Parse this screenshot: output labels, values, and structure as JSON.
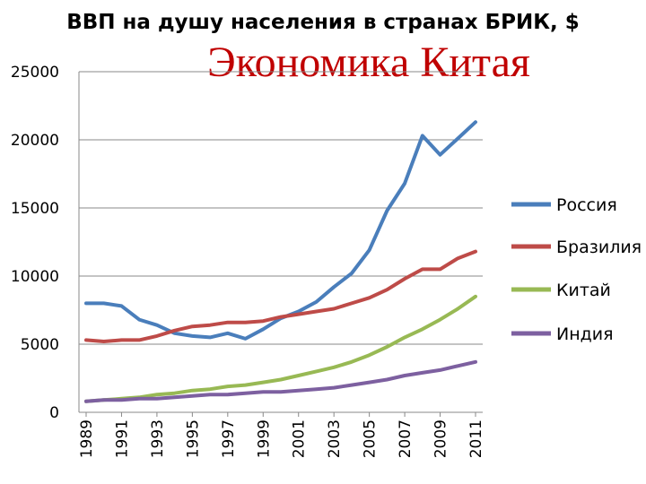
{
  "overlay_title": "Экономика Китая",
  "chart_data": {
    "type": "line",
    "title": "ВВП на душу населения в странах БРИК, $",
    "xlabel": "",
    "ylabel": "",
    "x": [
      1989,
      1990,
      1991,
      1992,
      1993,
      1994,
      1995,
      1996,
      1997,
      1998,
      1999,
      2000,
      2001,
      2002,
      2003,
      2004,
      2005,
      2006,
      2007,
      2008,
      2009,
      2010,
      2011
    ],
    "x_tick_labels": [
      "1989",
      "1991",
      "1993",
      "1995",
      "1997",
      "1999",
      "2001",
      "2003",
      "2005",
      "2007",
      "2009",
      "2011"
    ],
    "y_ticks": [
      "0",
      "5000",
      "10000",
      "15000",
      "20000",
      "25000"
    ],
    "ylim": [
      0,
      25000
    ],
    "grid": true,
    "legend_position": "right",
    "series": [
      {
        "name": "Россия",
        "color": "#4a7ebb",
        "values": [
          8000,
          8000,
          7800,
          6800,
          6400,
          5800,
          5600,
          5500,
          5800,
          5400,
          6100,
          6900,
          7400,
          8100,
          9200,
          10200,
          11900,
          14800,
          16800,
          20300,
          18900,
          20100,
          21300
        ]
      },
      {
        "name": "Бразилия",
        "color": "#be4b48",
        "values": [
          5300,
          5200,
          5300,
          5300,
          5600,
          6000,
          6300,
          6400,
          6600,
          6600,
          6700,
          7000,
          7200,
          7400,
          7600,
          8000,
          8400,
          9000,
          9800,
          10500,
          10500,
          11300,
          11800
        ]
      },
      {
        "name": "Китай",
        "color": "#98b954",
        "values": [
          800,
          900,
          1000,
          1100,
          1300,
          1400,
          1600,
          1700,
          1900,
          2000,
          2200,
          2400,
          2700,
          3000,
          3300,
          3700,
          4200,
          4800,
          5500,
          6100,
          6800,
          7600,
          8500
        ]
      },
      {
        "name": "Индия",
        "color": "#7d60a0",
        "values": [
          800,
          900,
          900,
          1000,
          1000,
          1100,
          1200,
          1300,
          1300,
          1400,
          1500,
          1500,
          1600,
          1700,
          1800,
          2000,
          2200,
          2400,
          2700,
          2900,
          3100,
          3400,
          3700
        ]
      }
    ]
  }
}
